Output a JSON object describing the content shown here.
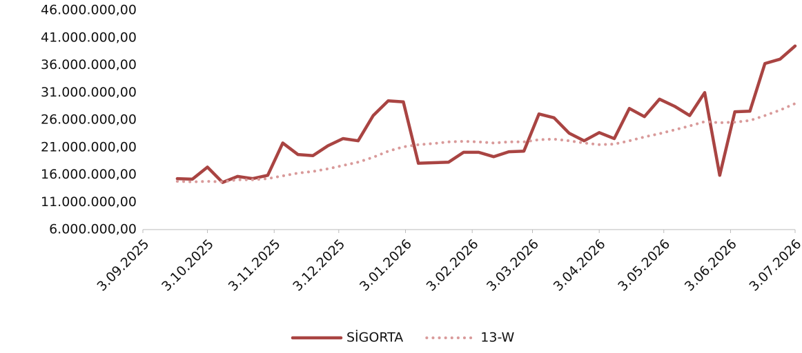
{
  "chart_data": {
    "type": "line",
    "x": [
      "2025-09-19",
      "2025-09-26",
      "2025-10-03",
      "2025-10-10",
      "2025-10-17",
      "2025-10-24",
      "2025-10-31",
      "2025-11-07",
      "2025-11-14",
      "2025-11-21",
      "2025-11-28",
      "2025-12-05",
      "2025-12-12",
      "2025-12-19",
      "2025-12-26",
      "2026-01-02",
      "2026-01-09",
      "2026-01-16",
      "2026-01-23",
      "2026-01-30",
      "2026-02-06",
      "2026-02-13",
      "2026-02-20",
      "2026-02-27",
      "2026-03-06",
      "2026-03-13",
      "2026-03-20",
      "2026-03-27",
      "2026-04-03",
      "2026-04-10",
      "2026-04-17",
      "2026-04-24",
      "2026-05-01",
      "2026-05-08",
      "2026-05-15",
      "2026-05-22",
      "2026-05-29",
      "2026-06-05",
      "2026-06-12",
      "2026-06-19",
      "2026-06-26",
      "2026-07-03"
    ],
    "series": [
      {
        "name": "SİGORTA",
        "color": "#a94442",
        "style": "solid",
        "values": [
          15300000,
          15200000,
          17400000,
          14600000,
          15700000,
          15300000,
          15900000,
          21800000,
          19700000,
          19500000,
          21300000,
          22600000,
          22200000,
          26800000,
          29500000,
          29300000,
          18100000,
          18200000,
          18300000,
          20100000,
          20100000,
          19300000,
          20200000,
          20300000,
          27100000,
          26400000,
          23600000,
          22200000,
          23700000,
          22600000,
          28100000,
          26600000,
          29800000,
          28500000,
          26800000,
          31000000,
          15900000,
          27500000,
          27600000,
          36300000,
          37100000,
          39500000
        ]
      },
      {
        "name": "13-W",
        "color": "#d99a9a",
        "style": "dotted",
        "values": [
          14800000,
          14700000,
          14800000,
          14700000,
          15100000,
          15100000,
          15300000,
          15800000,
          16300000,
          16600000,
          17100000,
          17700000,
          18300000,
          19200000,
          20300000,
          21100000,
          21500000,
          21700000,
          22000000,
          22100000,
          22000000,
          21800000,
          22000000,
          22000000,
          22400000,
          22500000,
          22200000,
          21800000,
          21500000,
          21600000,
          22200000,
          22900000,
          23500000,
          24200000,
          24900000,
          25700000,
          25500000,
          25600000,
          25900000,
          26800000,
          27800000,
          29000000
        ]
      }
    ],
    "xlim": [
      "2025-09-03",
      "2026-07-03"
    ],
    "xticks": [
      {
        "value": "2025-09-03",
        "label": "3.09.2025"
      },
      {
        "value": "2025-10-03",
        "label": "3.10.2025"
      },
      {
        "value": "2025-11-03",
        "label": "3.11.2025"
      },
      {
        "value": "2025-12-03",
        "label": "3.12.2025"
      },
      {
        "value": "2026-01-03",
        "label": "3.01.2026"
      },
      {
        "value": "2026-02-03",
        "label": "3.02.2026"
      },
      {
        "value": "2026-03-03",
        "label": "3.03.2026"
      },
      {
        "value": "2026-04-03",
        "label": "3.04.2026"
      },
      {
        "value": "2026-05-03",
        "label": "3.05.2026"
      },
      {
        "value": "2026-06-03",
        "label": "3.06.2026"
      },
      {
        "value": "2026-07-03",
        "label": "3.07.2026"
      }
    ],
    "ylim": [
      6000000,
      46000000
    ],
    "yticks": [
      {
        "value": 6000000,
        "label": "6.000.000,00"
      },
      {
        "value": 11000000,
        "label": "11.000.000,00"
      },
      {
        "value": 16000000,
        "label": "16.000.000,00"
      },
      {
        "value": 21000000,
        "label": "21.000.000,00"
      },
      {
        "value": 26000000,
        "label": "26.000.000,00"
      },
      {
        "value": 31000000,
        "label": "31.000.000,00"
      },
      {
        "value": 36000000,
        "label": "36.000.000,00"
      },
      {
        "value": 41000000,
        "label": "41.000.000,00"
      },
      {
        "value": 46000000,
        "label": "46.000.000,00"
      }
    ],
    "grid": false,
    "legend": "bottom"
  }
}
